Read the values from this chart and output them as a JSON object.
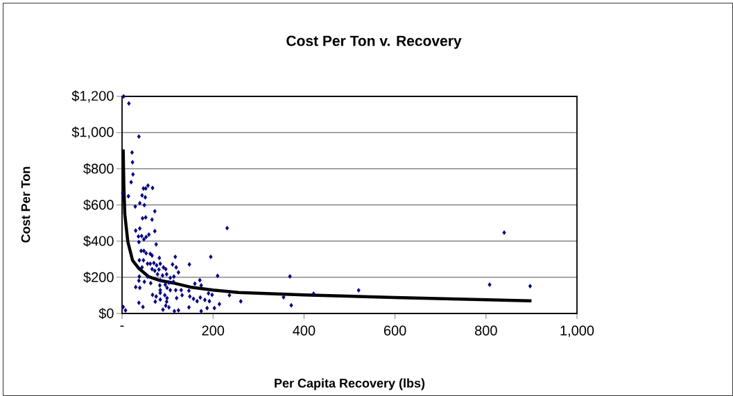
{
  "chart_data": {
    "type": "scatter",
    "title": "Cost Per Ton v. Recovery",
    "xlabel": "Per Capita Recovery (lbs)",
    "ylabel": "Cost Per Ton",
    "xlim": [
      0,
      1000
    ],
    "ylim": [
      0,
      1200
    ],
    "xticks": [
      {
        "value": 0,
        "label": "-"
      },
      200,
      400,
      600,
      800,
      {
        "value": 1000,
        "label": "1,000"
      }
    ],
    "yticks": [
      {
        "value": 0,
        "label": "$0"
      },
      {
        "value": 200,
        "label": "$200"
      },
      {
        "value": 400,
        "label": "$400"
      },
      {
        "value": 600,
        "label": "$600"
      },
      {
        "value": 800,
        "label": "$800"
      },
      {
        "value": 1000,
        "label": "$1,000"
      },
      {
        "value": 1200,
        "label": "$1,200"
      }
    ],
    "grid": "y",
    "series": [
      {
        "color": "#000080",
        "marker": "diamond",
        "x": [
          3.5,
          15,
          37,
          22,
          23,
          24,
          20,
          1.5,
          14,
          47,
          52,
          57,
          67,
          44,
          51,
          39,
          29,
          49,
          72,
          45,
          52,
          66,
          30,
          39,
          72,
          36,
          43,
          48,
          53,
          59,
          37,
          75,
          42,
          48,
          53,
          62,
          66,
          38,
          47,
          82,
          117,
          56,
          62,
          70,
          76,
          84,
          44,
          66,
          72,
          81,
          91,
          96,
          111,
          119,
          148,
          195,
          231,
          38,
          56,
          78,
          89,
          98,
          124,
          210,
          84,
          106,
          114,
          37,
          49,
          63,
          83,
          95,
          103,
          113,
          171,
          160,
          30,
          39,
          84,
          99,
          106,
          118,
          130,
          147,
          174,
          190,
          198,
          236,
          67,
          75,
          84,
          94,
          99,
          120,
          132,
          149,
          157,
          165,
          172,
          182,
          192,
          73,
          84,
          98,
          37,
          96,
          103,
          90,
          115,
          124,
          147,
          174,
          187,
          203,
          214,
          46,
          2.5,
          7.6,
          369,
          372,
          355,
          261,
          421,
          520,
          808,
          840,
          897
        ],
        "values": [
          1200,
          1161,
          978,
          890,
          836,
          769,
          726,
          666,
          648,
          691,
          691,
          707,
          694,
          653,
          642,
          610,
          591,
          599,
          565,
          526,
          531,
          519,
          458,
          470,
          455,
          426,
          428,
          410,
          423,
          436,
          395,
          382,
          346,
          346,
          333,
          330,
          320,
          294,
          294,
          307,
          313,
          275,
          275,
          279,
          266,
          275,
          255,
          245,
          236,
          243,
          255,
          245,
          271,
          255,
          271,
          313,
          472,
          204,
          204,
          217,
          210,
          217,
          227,
          208,
          184,
          197,
          204,
          181,
          175,
          168,
          155,
          159,
          170,
          175,
          184,
          165,
          146,
          142,
          129,
          142,
          129,
          129,
          129,
          126,
          155,
          111,
          103,
          101,
          103,
          94,
          114,
          101,
          85,
          85,
          101,
          94,
          81,
          68,
          88,
          75,
          68,
          65,
          77,
          65,
          59,
          43,
          34,
          21,
          13,
          17,
          34,
          13,
          30,
          30,
          52,
          36,
          36,
          17,
          205,
          45,
          90,
          67,
          109,
          128,
          159,
          447,
          151
        ]
      },
      {
        "type": "line",
        "color": "#000000",
        "marker": "none",
        "x": [
          2.5,
          4,
          6,
          12.7,
          23,
          37,
          58,
          84,
          114,
          150,
          200,
          256,
          400,
          600,
          900
        ],
        "values": [
          907,
          700,
          550,
          397,
          294,
          249,
          204,
          182,
          168,
          146,
          129,
          116,
          103,
          88,
          70
        ]
      }
    ]
  }
}
